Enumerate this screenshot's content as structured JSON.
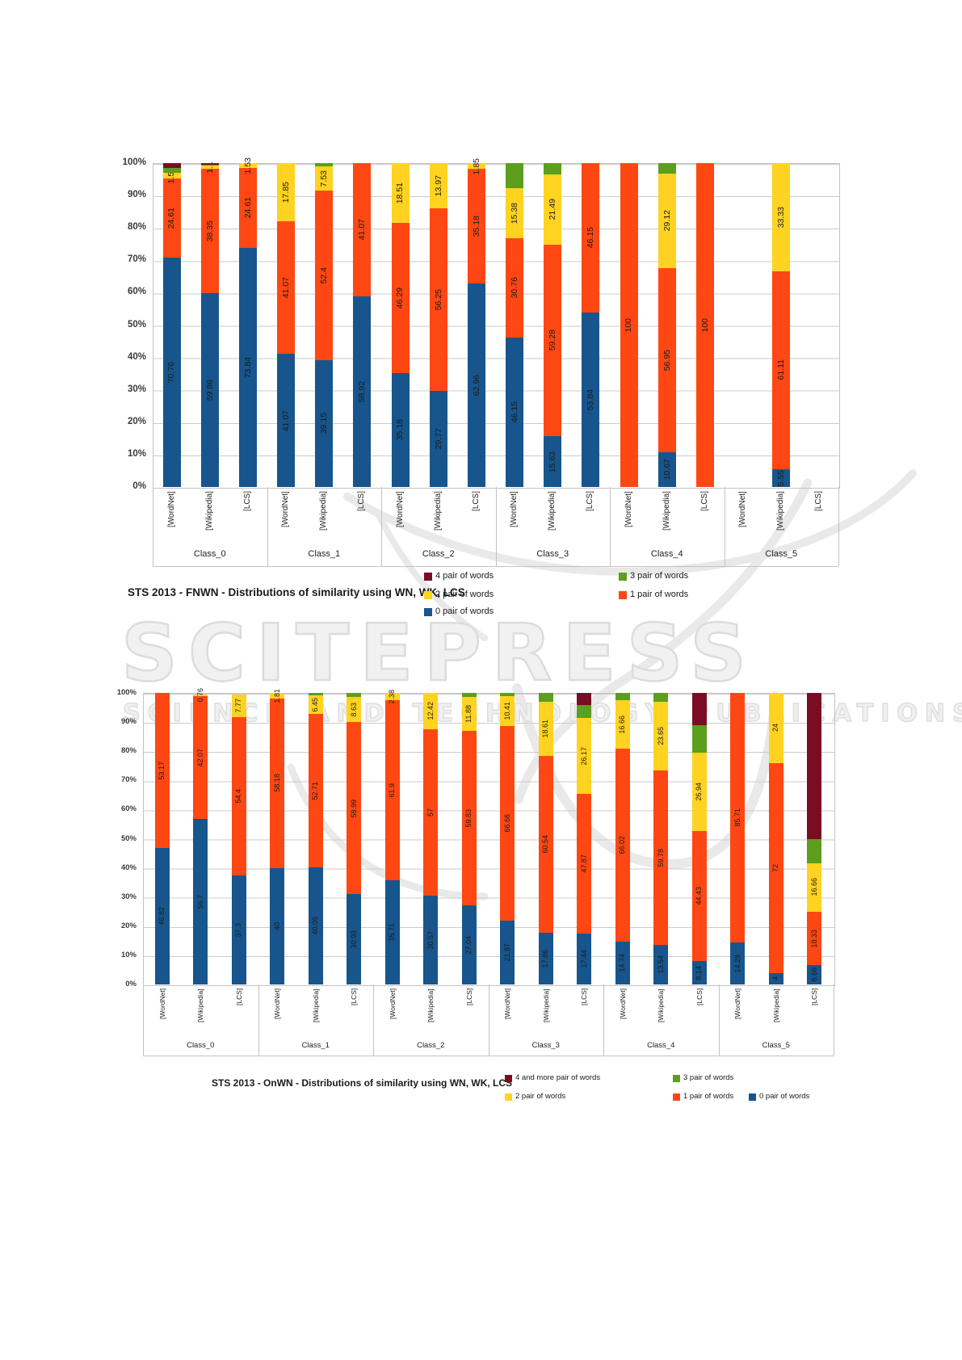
{
  "watermark": {
    "line1": "SCITEPRESS",
    "line2": "SCIENCE AND TECHNOLOGY PUBLICATIONS"
  },
  "palette": {
    "p0": "#17558C",
    "p1": "#FF4713",
    "p2": "#FFD320",
    "p3": "#5C9E1E",
    "p4": "#7A0C23"
  },
  "chart_data": [
    {
      "type": "bar",
      "subtype": "stacked-percent",
      "title": "STS 2013 - FNWN - Distributions of similarity using WN, WK, LCS",
      "ylim": [
        0,
        100
      ],
      "grid": true,
      "ylabel_ticks": [
        "100%",
        "90%",
        "80%",
        "70%",
        "60%",
        "50%",
        "40%",
        "30%",
        "20%",
        "10%",
        "0%"
      ],
      "classes": [
        "Class_0",
        "Class_1",
        "Class_2",
        "Class_3",
        "Class_4",
        "Class_5"
      ],
      "sources": [
        "[WordNet]",
        "[Wikipedia]",
        "[LCS]"
      ],
      "legend": [
        {
          "key": "p4",
          "label": "4 pair of words",
          "color": "#7A0C23"
        },
        {
          "key": "p3",
          "label": "3 pair of words",
          "color": "#5C9E1E"
        },
        {
          "key": "p2",
          "label": "2 pair of words",
          "color": "#FFD320"
        },
        {
          "key": "p1",
          "label": "1 pair of words",
          "color": "#FF4713"
        },
        {
          "key": "p0",
          "label": "0 pair of words",
          "color": "#17558C"
        }
      ],
      "bars": [
        {
          "class": "Class_0",
          "source": "[WordNet]",
          "segments": [
            {
              "k": "p0",
              "v": 70.76,
              "label": "70.76"
            },
            {
              "k": "p1",
              "v": 24.61,
              "label": "24.61"
            },
            {
              "k": "p2",
              "v": 1.53,
              "label": "1.53"
            },
            {
              "k": "p3",
              "v": 1.5,
              "label": ""
            },
            {
              "k": "p4",
              "v": 1.56,
              "label": ""
            }
          ]
        },
        {
          "class": "Class_0",
          "source": "[Wikipedia]",
          "segments": [
            {
              "k": "p0",
              "v": 59.86,
              "label": "59.86"
            },
            {
              "k": "p1",
              "v": 38.35,
              "label": "38.35"
            },
            {
              "k": "p2",
              "v": 1.1,
              "label": "1.1"
            },
            {
              "k": "p3",
              "v": 0.3,
              "label": ""
            },
            {
              "k": "p4",
              "v": 0.39,
              "label": ""
            }
          ]
        },
        {
          "class": "Class_0",
          "source": "[LCS]",
          "segments": [
            {
              "k": "p0",
              "v": 73.84,
              "label": "73.84"
            },
            {
              "k": "p1",
              "v": 24.61,
              "label": "24.61"
            },
            {
              "k": "p2",
              "v": 1.53,
              "label": "1.53"
            }
          ]
        },
        {
          "class": "Class_1",
          "source": "[WordNet]",
          "segments": [
            {
              "k": "p0",
              "v": 41.07,
              "label": "41.07"
            },
            {
              "k": "p1",
              "v": 41.07,
              "label": "41.07"
            },
            {
              "k": "p2",
              "v": 17.85,
              "label": "17.85"
            }
          ]
        },
        {
          "class": "Class_1",
          "source": "[Wikipedia]",
          "segments": [
            {
              "k": "p0",
              "v": 39.15,
              "label": "39.15"
            },
            {
              "k": "p1",
              "v": 52.4,
              "label": "52.4"
            },
            {
              "k": "p2",
              "v": 7.53,
              "label": "7.53"
            },
            {
              "k": "p3",
              "v": 0.92,
              "label": ""
            }
          ]
        },
        {
          "class": "Class_1",
          "source": "[LCS]",
          "segments": [
            {
              "k": "p0",
              "v": 58.92,
              "label": "58.92"
            },
            {
              "k": "p1",
              "v": 41.07,
              "label": "41.07"
            }
          ]
        },
        {
          "class": "Class_2",
          "source": "[WordNet]",
          "segments": [
            {
              "k": "p0",
              "v": 35.18,
              "label": "35.18"
            },
            {
              "k": "p1",
              "v": 46.29,
              "label": "46.29"
            },
            {
              "k": "p2",
              "v": 18.51,
              "label": "18.51"
            }
          ]
        },
        {
          "class": "Class_2",
          "source": "[Wikipedia]",
          "segments": [
            {
              "k": "p0",
              "v": 29.77,
              "label": "29.77"
            },
            {
              "k": "p1",
              "v": 56.25,
              "label": "56.25"
            },
            {
              "k": "p2",
              "v": 13.97,
              "label": "13.97"
            }
          ]
        },
        {
          "class": "Class_2",
          "source": "[LCS]",
          "segments": [
            {
              "k": "p0",
              "v": 62.96,
              "label": "62.96"
            },
            {
              "k": "p1",
              "v": 35.18,
              "label": "35.18"
            },
            {
              "k": "p2",
              "v": 1.85,
              "label": "1.85"
            }
          ]
        },
        {
          "class": "Class_3",
          "source": "[WordNet]",
          "segments": [
            {
              "k": "p0",
              "v": 46.15,
              "label": "46.15"
            },
            {
              "k": "p1",
              "v": 30.76,
              "label": "30.76"
            },
            {
              "k": "p2",
              "v": 15.38,
              "label": "15.38"
            },
            {
              "k": "p3",
              "v": 7.69,
              "label": ""
            }
          ]
        },
        {
          "class": "Class_3",
          "source": "[Wikipedia]",
          "segments": [
            {
              "k": "p0",
              "v": 15.63,
              "label": "15.63"
            },
            {
              "k": "p1",
              "v": 59.28,
              "label": "59.28"
            },
            {
              "k": "p2",
              "v": 21.49,
              "label": "21.49"
            },
            {
              "k": "p3",
              "v": 3.6,
              "label": ""
            }
          ]
        },
        {
          "class": "Class_3",
          "source": "[LCS]",
          "segments": [
            {
              "k": "p0",
              "v": 53.84,
              "label": "53.84"
            },
            {
              "k": "p1",
              "v": 46.15,
              "label": "46.15"
            }
          ]
        },
        {
          "class": "Class_4",
          "source": "[WordNet]",
          "segments": [
            {
              "k": "p1",
              "v": 100,
              "label": "100"
            }
          ]
        },
        {
          "class": "Class_4",
          "source": "[Wikipedia]",
          "segments": [
            {
              "k": "p0",
              "v": 10.67,
              "label": "10.67"
            },
            {
              "k": "p1",
              "v": 56.95,
              "label": "56.95"
            },
            {
              "k": "p2",
              "v": 29.12,
              "label": "29.12"
            },
            {
              "k": "p3",
              "v": 3.26,
              "label": ""
            }
          ]
        },
        {
          "class": "Class_4",
          "source": "[LCS]",
          "segments": [
            {
              "k": "p1",
              "v": 100,
              "label": "100"
            }
          ]
        },
        {
          "class": "Class_5",
          "source": "[WordNet]",
          "segments": []
        },
        {
          "class": "Class_5",
          "source": "[Wikipedia]",
          "segments": [
            {
              "k": "p0",
              "v": 5.55,
              "label": "5.55"
            },
            {
              "k": "p1",
              "v": 61.11,
              "label": "61.11"
            },
            {
              "k": "p2",
              "v": 33.33,
              "label": "33.33"
            }
          ]
        },
        {
          "class": "Class_5",
          "source": "[LCS]",
          "segments": []
        }
      ]
    },
    {
      "type": "bar",
      "subtype": "stacked-percent",
      "title": "STS 2013 - OnWN - Distributions of similarity using WN, WK, LCS",
      "ylim": [
        0,
        100
      ],
      "grid": true,
      "ylabel_ticks": [
        "100%",
        "90%",
        "80%",
        "70%",
        "60%",
        "50%",
        "40%",
        "30%",
        "20%",
        "10%",
        "0%"
      ],
      "classes": [
        "Class_0",
        "Class_1",
        "Class_2",
        "Class_3",
        "Class_4",
        "Class_5"
      ],
      "sources": [
        "[WordNet]",
        "[Wikipedia]",
        "[LCS]"
      ],
      "legend": [
        {
          "key": "p4",
          "label": "4 and more pair of words",
          "color": "#7A0C23"
        },
        {
          "key": "p3",
          "label": "3 pair of words",
          "color": "#5C9E1E"
        },
        {
          "key": "p2",
          "label": "2 pair of words",
          "color": "#FFD320"
        },
        {
          "key": "p1",
          "label": "1 pair of words",
          "color": "#FF4713"
        },
        {
          "key": "p0",
          "label": "0 pair of words",
          "color": "#17558C"
        }
      ],
      "bars": [
        {
          "class": "Class_0",
          "source": "[WordNet]",
          "segments": [
            {
              "k": "p0",
              "v": 46.82,
              "label": "46.82"
            },
            {
              "k": "p1",
              "v": 53.17,
              "label": "53.17"
            }
          ]
        },
        {
          "class": "Class_0",
          "source": "[Wikipedia]",
          "segments": [
            {
              "k": "p0",
              "v": 56.7,
              "label": "56.7"
            },
            {
              "k": "p1",
              "v": 42.07,
              "label": "42.07"
            },
            {
              "k": "p2",
              "v": 0.76,
              "label": "0.76"
            }
          ]
        },
        {
          "class": "Class_0",
          "source": "[LCS]",
          "segments": [
            {
              "k": "p0",
              "v": 37.3,
              "label": "37.3"
            },
            {
              "k": "p1",
              "v": 54.4,
              "label": "54.4"
            },
            {
              "k": "p2",
              "v": 7.77,
              "label": "7.77"
            }
          ]
        },
        {
          "class": "Class_1",
          "source": "[WordNet]",
          "segments": [
            {
              "k": "p0",
              "v": 40,
              "label": "40"
            },
            {
              "k": "p1",
              "v": 58.18,
              "label": "58.18"
            },
            {
              "k": "p2",
              "v": 1.81,
              "label": "1.81"
            }
          ]
        },
        {
          "class": "Class_1",
          "source": "[Wikipedia]",
          "segments": [
            {
              "k": "p0",
              "v": 40.05,
              "label": "40.05"
            },
            {
              "k": "p1",
              "v": 52.71,
              "label": "52.71"
            },
            {
              "k": "p2",
              "v": 6.45,
              "label": "6.45"
            },
            {
              "k": "p3",
              "v": 0.79,
              "label": ""
            }
          ]
        },
        {
          "class": "Class_1",
          "source": "[LCS]",
          "segments": [
            {
              "k": "p0",
              "v": 30.93,
              "label": "30.93"
            },
            {
              "k": "p1",
              "v": 58.99,
              "label": "58.99"
            },
            {
              "k": "p2",
              "v": 8.63,
              "label": "8.63"
            },
            {
              "k": "p3",
              "v": 1.45,
              "label": ""
            }
          ]
        },
        {
          "class": "Class_2",
          "source": "[WordNet]",
          "segments": [
            {
              "k": "p0",
              "v": 35.71,
              "label": "35.71"
            },
            {
              "k": "p1",
              "v": 61.9,
              "label": "61.9"
            },
            {
              "k": "p2",
              "v": 2.38,
              "label": "2.38"
            }
          ]
        },
        {
          "class": "Class_2",
          "source": "[Wikipedia]",
          "segments": [
            {
              "k": "p0",
              "v": 30.57,
              "label": "30.57"
            },
            {
              "k": "p1",
              "v": 57,
              "label": "57"
            },
            {
              "k": "p2",
              "v": 12.42,
              "label": "12.42"
            }
          ]
        },
        {
          "class": "Class_2",
          "source": "[LCS]",
          "segments": [
            {
              "k": "p0",
              "v": 27.04,
              "label": "27.04"
            },
            {
              "k": "p1",
              "v": 59.83,
              "label": "59.83"
            },
            {
              "k": "p2",
              "v": 11.88,
              "label": "11.88"
            },
            {
              "k": "p3",
              "v": 1.25,
              "label": ""
            }
          ]
        },
        {
          "class": "Class_3",
          "source": "[WordNet]",
          "segments": [
            {
              "k": "p0",
              "v": 21.87,
              "label": "21.87"
            },
            {
              "k": "p1",
              "v": 66.66,
              "label": "66.66"
            },
            {
              "k": "p2",
              "v": 10.41,
              "label": "10.41"
            },
            {
              "k": "p3",
              "v": 1.06,
              "label": ""
            }
          ]
        },
        {
          "class": "Class_3",
          "source": "[Wikipedia]",
          "segments": [
            {
              "k": "p0",
              "v": 17.86,
              "label": "17.86"
            },
            {
              "k": "p1",
              "v": 60.54,
              "label": "60.54"
            },
            {
              "k": "p2",
              "v": 18.61,
              "label": "18.61"
            },
            {
              "k": "p3",
              "v": 2.99,
              "label": ""
            }
          ]
        },
        {
          "class": "Class_3",
          "source": "[LCS]",
          "segments": [
            {
              "k": "p0",
              "v": 17.44,
              "label": "17.44"
            },
            {
              "k": "p1",
              "v": 47.87,
              "label": "47.87"
            },
            {
              "k": "p2",
              "v": 26.17,
              "label": "26.17"
            },
            {
              "k": "p3",
              "v": 4.26,
              "label": ""
            },
            {
              "k": "p4",
              "v": 4.26,
              "label": ""
            }
          ]
        },
        {
          "class": "Class_4",
          "source": "[WordNet]",
          "segments": [
            {
              "k": "p0",
              "v": 14.74,
              "label": "14.74"
            },
            {
              "k": "p1",
              "v": 66.02,
              "label": "66.02"
            },
            {
              "k": "p2",
              "v": 16.66,
              "label": "16.66"
            },
            {
              "k": "p3",
              "v": 2.58,
              "label": ""
            }
          ]
        },
        {
          "class": "Class_4",
          "source": "[Wikipedia]",
          "segments": [
            {
              "k": "p0",
              "v": 13.54,
              "label": "13.54"
            },
            {
              "k": "p1",
              "v": 59.78,
              "label": "59.78"
            },
            {
              "k": "p2",
              "v": 23.65,
              "label": "23.65"
            },
            {
              "k": "p3",
              "v": 3.03,
              "label": ""
            }
          ]
        },
        {
          "class": "Class_4",
          "source": "[LCS]",
          "segments": [
            {
              "k": "p0",
              "v": 8.14,
              "label": "8.14"
            },
            {
              "k": "p1",
              "v": 44.43,
              "label": "44.43"
            },
            {
              "k": "p2",
              "v": 26.94,
              "label": "26.94"
            },
            {
              "k": "p3",
              "v": 9.41,
              "label": ""
            },
            {
              "k": "p4",
              "v": 11.08,
              "label": ""
            }
          ]
        },
        {
          "class": "Class_5",
          "source": "[WordNet]",
          "segments": [
            {
              "k": "p0",
              "v": 14.28,
              "label": "14.28"
            },
            {
              "k": "p1",
              "v": 85.71,
              "label": "85.71"
            }
          ]
        },
        {
          "class": "Class_5",
          "source": "[Wikipedia]",
          "segments": [
            {
              "k": "p0",
              "v": 4,
              "label": "4"
            },
            {
              "k": "p1",
              "v": 72,
              "label": "72"
            },
            {
              "k": "p2",
              "v": 24,
              "label": "24"
            }
          ]
        },
        {
          "class": "Class_5",
          "source": "[LCS]",
          "segments": [
            {
              "k": "p0",
              "v": 6.66,
              "label": "6.66"
            },
            {
              "k": "p1",
              "v": 18.33,
              "label": "18.33"
            },
            {
              "k": "p2",
              "v": 16.66,
              "label": "16.66"
            },
            {
              "k": "p3",
              "v": 8.33,
              "label": ""
            },
            {
              "k": "p4",
              "v": 50,
              "label": ""
            }
          ]
        }
      ]
    }
  ]
}
